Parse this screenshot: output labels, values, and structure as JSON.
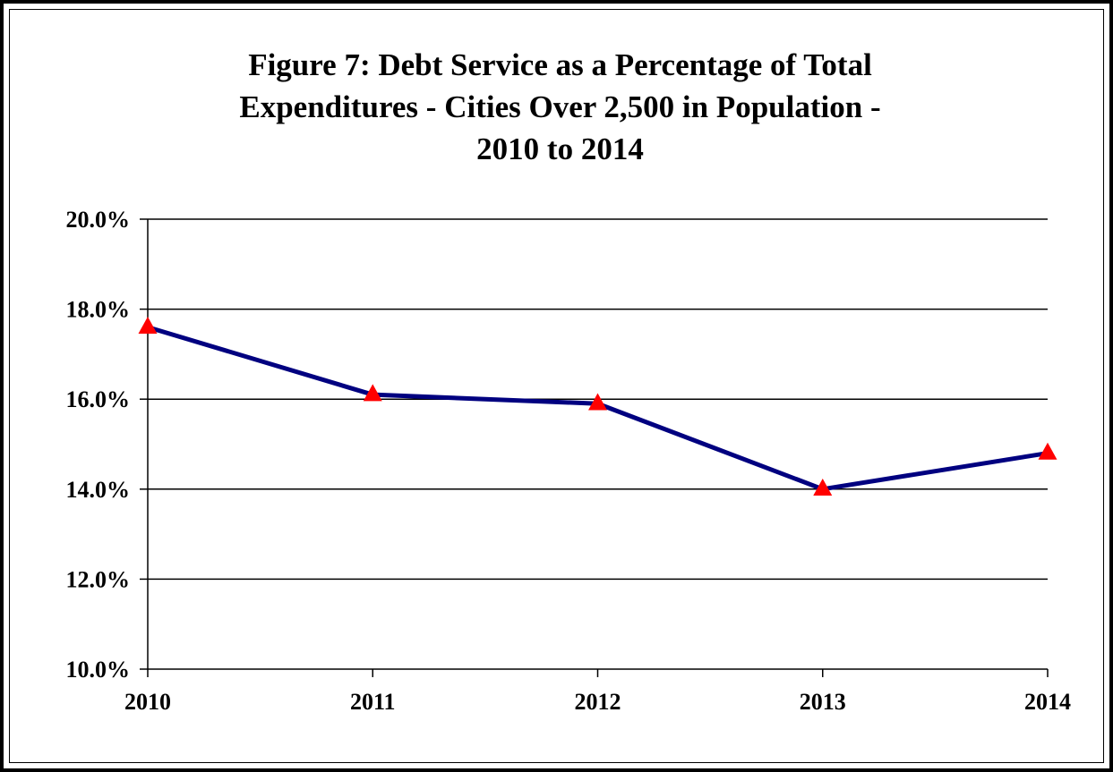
{
  "chart_data": {
    "type": "line",
    "title_lines": [
      "Figure 7:  Debt Service as a Percentage of Total",
      "Expenditures - Cities Over 2,500 in Population -",
      "2010 to 2014"
    ],
    "categories": [
      "2010",
      "2011",
      "2012",
      "2013",
      "2014"
    ],
    "series": [
      {
        "values": [
          17.6,
          16.1,
          15.9,
          14.0,
          14.8
        ],
        "line_color": "#000080",
        "marker": "triangle",
        "marker_color": "#ff0000"
      }
    ],
    "yticks": [
      10.0,
      12.0,
      14.0,
      16.0,
      18.0,
      20.0
    ],
    "ytick_labels": [
      "10.0%",
      "12.0%",
      "14.0%",
      "16.0%",
      "18.0%",
      "20.0%"
    ],
    "ylim": [
      10.0,
      20.0
    ],
    "xlabel": "",
    "ylabel": "",
    "grid": "horizontal",
    "legend": "none"
  }
}
